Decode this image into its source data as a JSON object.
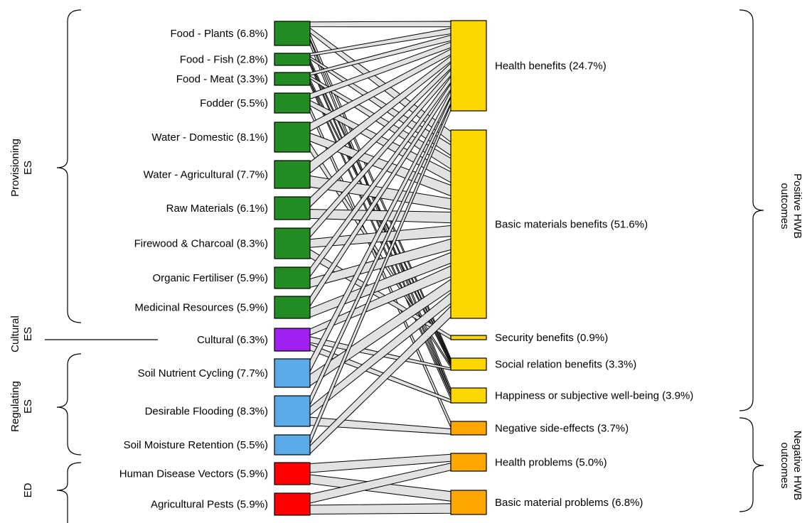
{
  "left_nodes": [
    {
      "label": "Food - Plants (6.8%)",
      "color": "#228b22"
    },
    {
      "label": "Food - Fish (2.8%)",
      "color": "#228b22"
    },
    {
      "label": "Food - Meat (3.3%)",
      "color": "#228b22"
    },
    {
      "label": "Fodder (5.5%)",
      "color": "#228b22"
    },
    {
      "label": "Water - Domestic (8.1%)",
      "color": "#228b22"
    },
    {
      "label": "Water - Agricultural (7.7%)",
      "color": "#228b22"
    },
    {
      "label": "Raw Materials (6.1%)",
      "color": "#228b22"
    },
    {
      "label": "Firewood & Charcoal (8.3%)",
      "color": "#228b22"
    },
    {
      "label": "Organic Fertiliser (5.9%)",
      "color": "#228b22"
    },
    {
      "label": "Medicinal Resources (5.9%)",
      "color": "#228b22"
    },
    {
      "label": "Cultural (6.3%)",
      "color": "#a020f0"
    },
    {
      "label": "Soil Nutrient Cycling (7.7%)",
      "color": "#5aaae8"
    },
    {
      "label": "Desirable Flooding (8.3%)",
      "color": "#5aaae8"
    },
    {
      "label": "Soil Moisture Retention (5.5%)",
      "color": "#5aaae8"
    },
    {
      "label": "Human Disease Vectors (5.9%)",
      "color": "#ff0000"
    },
    {
      "label": "Agricultural Pests (5.9%)",
      "color": "#ff0000"
    }
  ],
  "right_nodes": [
    {
      "label": "Health benefits (24.7%)",
      "color": "#ffd700"
    },
    {
      "label": "Basic materials benefits (51.6%)",
      "color": "#ffd700"
    },
    {
      "label": "Security benefits (0.9%)",
      "color": "#ffd700"
    },
    {
      "label": "Social relation benefits (3.3%)",
      "color": "#ffd700"
    },
    {
      "label": "Happiness or subjective well-being (3.9%)",
      "color": "#ffd700"
    },
    {
      "label": "Negative side-effects (3.7%)",
      "color": "#ffa500"
    },
    {
      "label": "Health problems (5.0%)",
      "color": "#ffa500"
    },
    {
      "label": "Basic material problems (6.8%)",
      "color": "#ffa500"
    }
  ],
  "left_groups": [
    {
      "lines": [
        "Provisioning",
        "ES"
      ]
    },
    {
      "lines": [
        "Cultural",
        "ES"
      ]
    },
    {
      "lines": [
        "Regulating",
        "ES"
      ]
    },
    {
      "lines": [
        "ED"
      ]
    }
  ],
  "right_groups": [
    {
      "lines": [
        "Positive HWB",
        "outcomes"
      ]
    },
    {
      "lines": [
        "Negative HWB",
        "outcomes"
      ]
    }
  ],
  "links": [
    {
      "source": 0,
      "target": 0
    },
    {
      "source": 0,
      "target": 1
    },
    {
      "source": 0,
      "target": 3
    },
    {
      "source": 0,
      "target": 4
    },
    {
      "source": 1,
      "target": 0
    },
    {
      "source": 1,
      "target": 1
    },
    {
      "source": 1,
      "target": 3
    },
    {
      "source": 1,
      "target": 4
    },
    {
      "source": 2,
      "target": 0
    },
    {
      "source": 2,
      "target": 1
    },
    {
      "source": 2,
      "target": 3
    },
    {
      "source": 2,
      "target": 4
    },
    {
      "source": 3,
      "target": 0
    },
    {
      "source": 3,
      "target": 1
    },
    {
      "source": 3,
      "target": 5
    },
    {
      "source": 4,
      "target": 0
    },
    {
      "source": 4,
      "target": 1
    },
    {
      "source": 4,
      "target": 3
    },
    {
      "source": 5,
      "target": 0
    },
    {
      "source": 5,
      "target": 1
    },
    {
      "source": 6,
      "target": 0
    },
    {
      "source": 6,
      "target": 1
    },
    {
      "source": 7,
      "target": 0
    },
    {
      "source": 7,
      "target": 1
    },
    {
      "source": 7,
      "target": 2
    },
    {
      "source": 8,
      "target": 0
    },
    {
      "source": 8,
      "target": 1
    },
    {
      "source": 9,
      "target": 0
    },
    {
      "source": 9,
      "target": 1
    },
    {
      "source": 10,
      "target": 1
    },
    {
      "source": 10,
      "target": 3
    },
    {
      "source": 10,
      "target": 4
    },
    {
      "source": 11,
      "target": 0
    },
    {
      "source": 11,
      "target": 1
    },
    {
      "source": 12,
      "target": 0
    },
    {
      "source": 12,
      "target": 1
    },
    {
      "source": 12,
      "target": 5
    },
    {
      "source": 13,
      "target": 0
    },
    {
      "source": 13,
      "target": 1
    },
    {
      "source": 14,
      "target": 6
    },
    {
      "source": 14,
      "target": 7
    },
    {
      "source": 15,
      "target": 6
    },
    {
      "source": 15,
      "target": 7
    }
  ]
}
